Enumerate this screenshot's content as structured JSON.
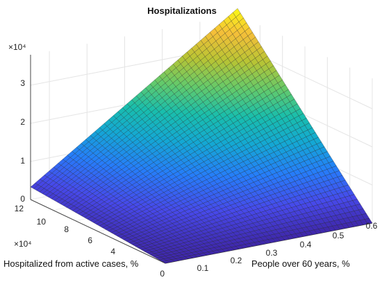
{
  "chart_data": {
    "type": "surface",
    "title": "Hospitalizations",
    "xlabel": "People over 60 years, %",
    "ylabel": "Hospitalized from active cases, %",
    "zlabel": "",
    "x_ticks": [
      "0.1",
      "0.2",
      "0.3",
      "0.4",
      "0.5",
      "0.6"
    ],
    "y_ticks": [
      "0",
      "2",
      "4",
      "6",
      "8",
      "10",
      "12"
    ],
    "z_ticks": [
      "0",
      "1",
      "2",
      "3"
    ],
    "x_exponent_label": "",
    "y_exponent_label": "×10⁴",
    "z_exponent_label": "×10⁴",
    "xlim": [
      0.05,
      0.6
    ],
    "ylim": [
      0,
      120000
    ],
    "zlim": [
      0,
      38000
    ],
    "surface": {
      "formula": "z = k * x * y",
      "k": 0.55,
      "corners": [
        {
          "x": 0.05,
          "y": 0,
          "z": 0
        },
        {
          "x": 0.6,
          "y": 0,
          "z": 0
        },
        {
          "x": 0.05,
          "y": 120000,
          "z": 3300
        },
        {
          "x": 0.6,
          "y": 120000,
          "z": 39600
        }
      ]
    },
    "colormap": "parula",
    "grid": true
  }
}
